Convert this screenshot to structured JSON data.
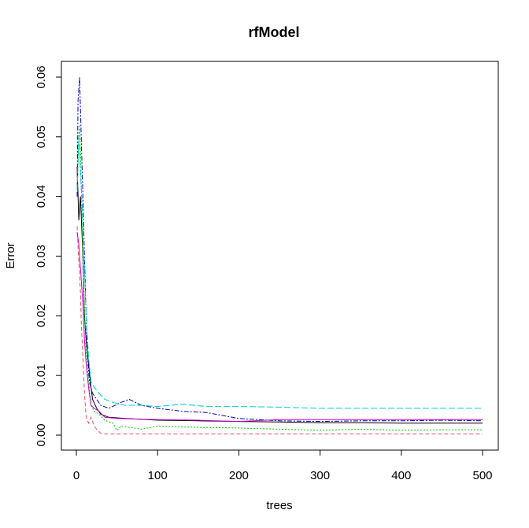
{
  "chart_data": {
    "type": "line",
    "title": "rfModel",
    "xlabel": "trees",
    "ylabel": "Error",
    "xlim": [
      0,
      500
    ],
    "ylim": [
      0,
      0.06
    ],
    "x_ticks": [
      0,
      100,
      200,
      300,
      400,
      500
    ],
    "x_tick_labels": [
      "0",
      "100",
      "200",
      "300",
      "400",
      "500"
    ],
    "y_ticks": [
      0,
      0.01,
      0.02,
      0.03,
      0.04,
      0.05,
      0.06
    ],
    "y_tick_labels": [
      "0.00",
      "0.01",
      "0.02",
      "0.03",
      "0.04",
      "0.05",
      "0.06"
    ],
    "grid": false,
    "legend": "none",
    "series": [
      {
        "color": "#000000",
        "dash": "",
        "points": [
          [
            1,
            0.045
          ],
          [
            3,
            0.036
          ],
          [
            5,
            0.04
          ],
          [
            8,
            0.03
          ],
          [
            10,
            0.02
          ],
          [
            12,
            0.016
          ],
          [
            15,
            0.012
          ],
          [
            18,
            0.008
          ],
          [
            20,
            0.006
          ],
          [
            25,
            0.0045
          ],
          [
            30,
            0.0035
          ],
          [
            40,
            0.003
          ],
          [
            60,
            0.0028
          ],
          [
            100,
            0.0025
          ],
          [
            150,
            0.0024
          ],
          [
            200,
            0.0023
          ],
          [
            250,
            0.0022
          ],
          [
            300,
            0.0021
          ],
          [
            350,
            0.0021
          ],
          [
            400,
            0.002
          ],
          [
            450,
            0.002
          ],
          [
            500,
            0.002
          ]
        ]
      },
      {
        "color": "#DF536B",
        "dash": "5,3",
        "points": [
          [
            1,
            0.035
          ],
          [
            3,
            0.029
          ],
          [
            5,
            0.024
          ],
          [
            6,
            0.019
          ],
          [
            8,
            0.013
          ],
          [
            10,
            0.007
          ],
          [
            12,
            0.003
          ],
          [
            15,
            0.002
          ],
          [
            18,
            0.003
          ],
          [
            22,
            0.0015
          ],
          [
            25,
            0.001
          ],
          [
            30,
            0.0003
          ],
          [
            35,
            0.0002
          ],
          [
            50,
            0.0002
          ],
          [
            100,
            0.0002
          ],
          [
            200,
            0.0002
          ],
          [
            300,
            0.0002
          ],
          [
            400,
            0.0002
          ],
          [
            500,
            0.0002
          ]
        ]
      },
      {
        "color": "#00CC00",
        "dash": "2,2",
        "points": [
          [
            1,
            0.04
          ],
          [
            3,
            0.05
          ],
          [
            4,
            0.052
          ],
          [
            5,
            0.048
          ],
          [
            8,
            0.03
          ],
          [
            10,
            0.02
          ],
          [
            12,
            0.014
          ],
          [
            15,
            0.009
          ],
          [
            18,
            0.005
          ],
          [
            22,
            0.004
          ],
          [
            28,
            0.0035
          ],
          [
            35,
            0.0025
          ],
          [
            45,
            0.002
          ],
          [
            50,
            0.0008
          ],
          [
            55,
            0.0015
          ],
          [
            80,
            0.001
          ],
          [
            100,
            0.0015
          ],
          [
            150,
            0.0013
          ],
          [
            200,
            0.0012
          ],
          [
            250,
            0.001
          ],
          [
            300,
            0.0008
          ],
          [
            350,
            0.001
          ],
          [
            400,
            0.0008
          ],
          [
            450,
            0.0009
          ],
          [
            500,
            0.0009
          ]
        ]
      },
      {
        "color": "#0000CC",
        "dash": "6,2,2,2",
        "points": [
          [
            1,
            0.04
          ],
          [
            2,
            0.056
          ],
          [
            3,
            0.058
          ],
          [
            4,
            0.06
          ],
          [
            6,
            0.05
          ],
          [
            8,
            0.04
          ],
          [
            10,
            0.03
          ],
          [
            12,
            0.02
          ],
          [
            14,
            0.013
          ],
          [
            16,
            0.009
          ],
          [
            20,
            0.007
          ],
          [
            25,
            0.006
          ],
          [
            30,
            0.005
          ],
          [
            40,
            0.0045
          ],
          [
            55,
            0.0055
          ],
          [
            65,
            0.006
          ],
          [
            80,
            0.005
          ],
          [
            100,
            0.0045
          ],
          [
            130,
            0.004
          ],
          [
            160,
            0.0038
          ],
          [
            200,
            0.0028
          ],
          [
            250,
            0.0024
          ],
          [
            300,
            0.0023
          ],
          [
            350,
            0.0024
          ],
          [
            400,
            0.0024
          ],
          [
            450,
            0.0025
          ],
          [
            500,
            0.0024
          ]
        ]
      },
      {
        "color": "#00CCCC",
        "dash": "8,3",
        "points": [
          [
            1,
            0.041
          ],
          [
            3,
            0.05
          ],
          [
            5,
            0.044
          ],
          [
            8,
            0.036
          ],
          [
            10,
            0.028
          ],
          [
            12,
            0.02
          ],
          [
            15,
            0.013
          ],
          [
            18,
            0.009
          ],
          [
            22,
            0.008
          ],
          [
            28,
            0.007
          ],
          [
            35,
            0.006
          ],
          [
            45,
            0.0055
          ],
          [
            60,
            0.005
          ],
          [
            80,
            0.005
          ],
          [
            100,
            0.0048
          ],
          [
            130,
            0.0052
          ],
          [
            160,
            0.0048
          ],
          [
            200,
            0.0048
          ],
          [
            250,
            0.0047
          ],
          [
            300,
            0.0045
          ],
          [
            350,
            0.0045
          ],
          [
            400,
            0.0045
          ],
          [
            450,
            0.0045
          ],
          [
            500,
            0.0045
          ]
        ]
      },
      {
        "color": "#CC00CC",
        "dash": "",
        "points": [
          [
            1,
            0.034
          ],
          [
            3,
            0.032
          ],
          [
            5,
            0.028
          ],
          [
            8,
            0.022
          ],
          [
            10,
            0.016
          ],
          [
            12,
            0.012
          ],
          [
            15,
            0.008
          ],
          [
            18,
            0.005
          ],
          [
            22,
            0.0045
          ],
          [
            28,
            0.004
          ],
          [
            35,
            0.003
          ],
          [
            50,
            0.0028
          ],
          [
            70,
            0.0027
          ],
          [
            100,
            0.0026
          ],
          [
            150,
            0.0025
          ],
          [
            200,
            0.0023
          ],
          [
            250,
            0.0026
          ],
          [
            300,
            0.0026
          ],
          [
            350,
            0.0026
          ],
          [
            400,
            0.0026
          ],
          [
            450,
            0.0026
          ],
          [
            500,
            0.0026
          ]
        ]
      }
    ]
  }
}
